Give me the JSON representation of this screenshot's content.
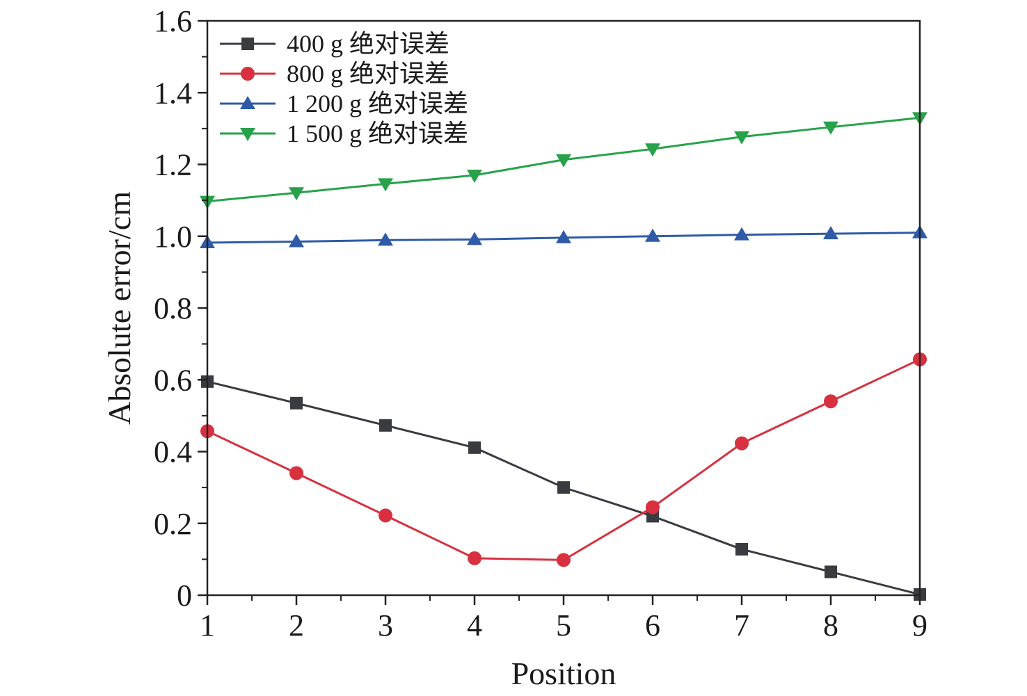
{
  "chart_data": {
    "type": "line",
    "xlabel": "Position",
    "ylabel": "Absolute error/cm",
    "xlim": [
      1,
      9
    ],
    "ylim": [
      0,
      1.6
    ],
    "x": [
      1,
      2,
      3,
      4,
      5,
      6,
      7,
      8,
      9
    ],
    "x_ticks": [
      "1",
      "2",
      "3",
      "4",
      "5",
      "6",
      "7",
      "8",
      "9"
    ],
    "y_ticks": [
      "0",
      "0.2",
      "0.4",
      "0.6",
      "0.8",
      "1.0",
      "1.2",
      "1.4",
      "1.6"
    ],
    "grid": false,
    "legend_position": "top-left",
    "series": [
      {
        "name": "400 g 绝对误差",
        "marker": "square",
        "color": "#3a3b40",
        "values": [
          0.595,
          0.535,
          0.473,
          0.411,
          0.3,
          0.22,
          0.128,
          0.065,
          0.002
        ]
      },
      {
        "name": "800 g 绝对误差",
        "marker": "circle",
        "color": "#d8303f",
        "values": [
          0.457,
          0.34,
          0.222,
          0.103,
          0.098,
          0.245,
          0.423,
          0.54,
          0.657
        ]
      },
      {
        "name": "1 200 g 绝对误差",
        "marker": "triangle-up",
        "color": "#2f5aa8",
        "values": [
          0.982,
          0.985,
          0.989,
          0.991,
          0.996,
          1.0,
          1.004,
          1.007,
          1.01
        ]
      },
      {
        "name": "1 500 g 绝对误差",
        "marker": "triangle-down",
        "color": "#27a24a",
        "values": [
          1.097,
          1.121,
          1.146,
          1.17,
          1.213,
          1.243,
          1.277,
          1.304,
          1.33
        ]
      }
    ]
  }
}
